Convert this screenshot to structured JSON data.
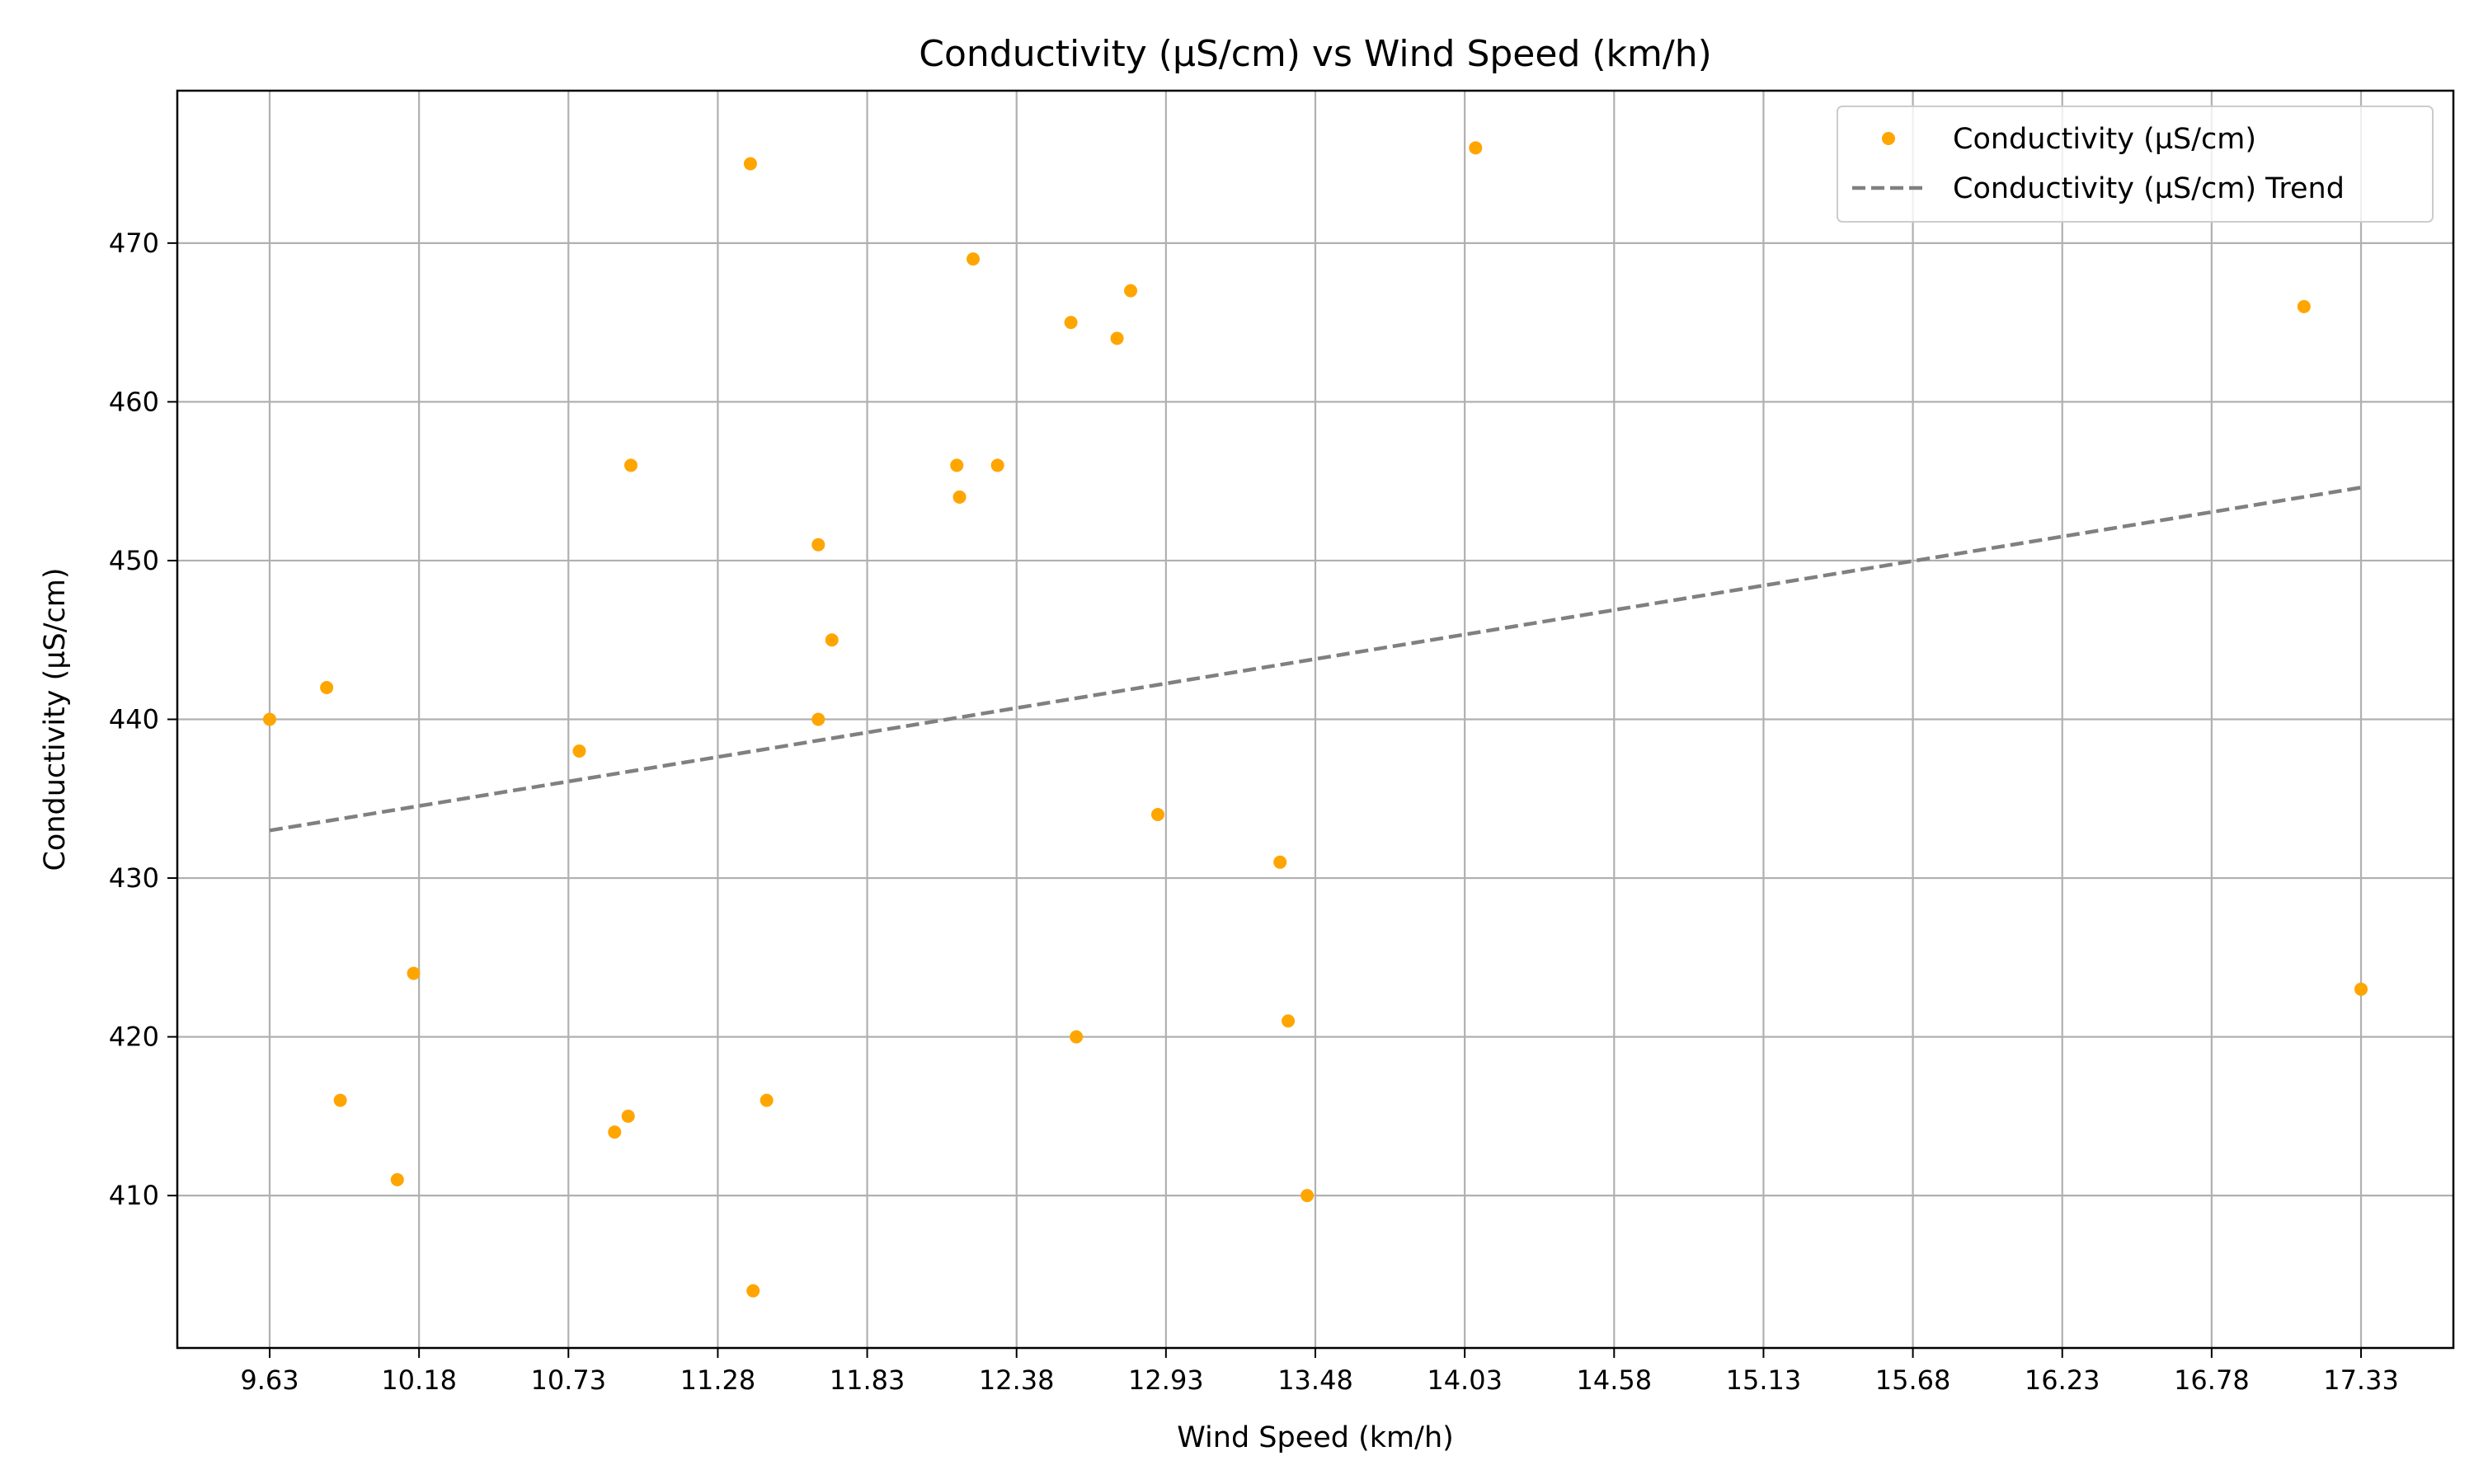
{
  "chart_data": {
    "type": "scatter",
    "title": "Conductivity (µS/cm) vs Wind Speed (km/h)",
    "xlabel": "Wind Speed (km/h)",
    "ylabel": "Conductivity (µS/cm)",
    "xlim": [
      9.29,
      17.67
    ],
    "ylim": [
      400.4,
      479.6
    ],
    "x_ticks": [
      9.63,
      10.18,
      10.73,
      11.28,
      11.83,
      12.38,
      12.93,
      13.48,
      14.03,
      14.58,
      15.13,
      15.68,
      16.23,
      16.78,
      17.33
    ],
    "x_tick_labels": [
      "9.63",
      "10.18",
      "10.73",
      "11.28",
      "11.83",
      "12.38",
      "12.93",
      "13.48",
      "14.03",
      "14.58",
      "15.13",
      "15.68",
      "16.23",
      "16.78",
      "17.33"
    ],
    "y_ticks": [
      410,
      420,
      430,
      440,
      450,
      460,
      470
    ],
    "y_tick_labels": [
      "410",
      "420",
      "430",
      "440",
      "450",
      "460",
      "470"
    ],
    "grid": true,
    "legend_position": "top-right",
    "series": [
      {
        "name": "Conductivity (µS/cm)",
        "kind": "scatter",
        "color": "#FFA500",
        "points": [
          [
            9.63,
            440
          ],
          [
            9.84,
            442
          ],
          [
            9.89,
            416
          ],
          [
            10.1,
            411
          ],
          [
            10.16,
            424
          ],
          [
            10.77,
            438
          ],
          [
            10.9,
            414
          ],
          [
            10.95,
            415
          ],
          [
            10.96,
            456
          ],
          [
            11.4,
            475
          ],
          [
            11.41,
            404
          ],
          [
            11.46,
            416
          ],
          [
            11.65,
            451
          ],
          [
            11.65,
            440
          ],
          [
            11.7,
            445
          ],
          [
            12.16,
            456
          ],
          [
            12.17,
            454
          ],
          [
            12.22,
            469
          ],
          [
            12.31,
            456
          ],
          [
            12.58,
            465
          ],
          [
            12.6,
            420
          ],
          [
            12.75,
            464
          ],
          [
            12.8,
            467
          ],
          [
            12.9,
            434
          ],
          [
            13.35,
            431
          ],
          [
            13.38,
            421
          ],
          [
            13.45,
            410
          ],
          [
            14.07,
            476
          ],
          [
            17.12,
            466
          ],
          [
            17.33,
            423
          ]
        ]
      },
      {
        "name": "Conductivity (µS/cm) Trend",
        "kind": "line",
        "color": "#808080",
        "dash": "dashed",
        "x": [
          9.63,
          17.33
        ],
        "y": [
          433.0,
          454.6
        ]
      }
    ]
  }
}
